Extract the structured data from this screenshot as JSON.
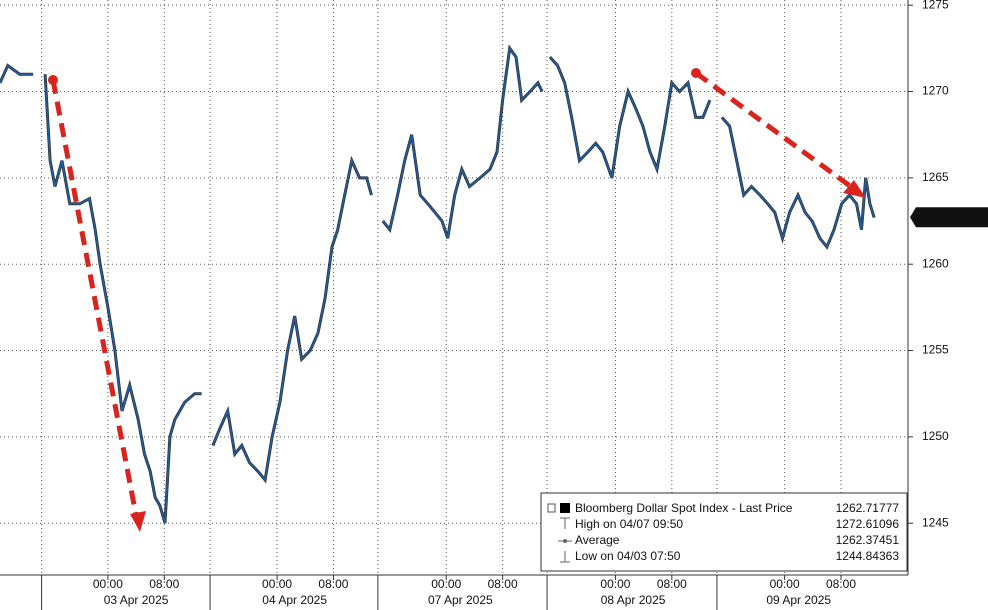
{
  "chart_data": {
    "type": "line",
    "x": [
      -15.3,
      -14.2,
      -12.5,
      -10.6,
      -9.4,
      -8.9,
      -8.2,
      -7.5,
      -6.5,
      -5.4,
      -4.0,
      -2.6,
      -1.8,
      -1.1,
      0,
      1.0,
      2.0,
      3.1,
      4.3,
      5.2,
      6.0,
      6.7,
      7.4,
      8.1,
      8.8,
      9.5,
      10.9,
      12.3,
      13.3,
      14.5,
      14.9,
      15.9,
      17.0,
      18.0,
      19.0,
      20.1,
      21.3,
      22.3,
      23.3,
      24.4,
      25.5,
      26.5,
      27.5,
      28.7,
      29.8,
      30.8,
      31.8,
      32.6,
      33.6,
      34.6,
      35.7,
      36.7,
      37.4,
      38.3,
      39.0,
      40.0,
      41.1,
      42.1,
      43.1,
      44.3,
      45.4,
      46.4,
      47.4,
      48.2,
      49.2,
      50.2,
      51.3,
      52.8,
      54.2,
      55.2,
      56.0,
      57.0,
      57.9,
      58.7,
      59.9,
      61.0,
      61.6,
      62.3,
      62.7,
      63.8,
      64.8,
      65.8,
      66.9,
      68.1,
      69.2,
      70.2,
      71.5,
      72.6,
      73.8,
      74.9,
      75.9,
      76.9,
      77.9,
      79.0,
      80.0,
      81.1,
      82.3,
      83.4,
      84.4,
      85.4,
      86.4,
      87.1,
      88.2,
      89.2,
      90.2,
      91.3,
      92.5,
      93.6,
      94.6,
      95.7,
      96.7,
      97.9,
      98.9,
      99.9,
      101.0,
      102.0,
      103.0,
      104.1,
      105.2,
      106.2,
      106.9,
      107.5,
      108.1,
      108.7
    ],
    "series": [
      {
        "name": "Bloomberg Dollar Spot Index - Last Price",
        "color": "#1d5fa6",
        "values": [
          1270.5,
          1271.5,
          1271,
          1271,
          null,
          1271,
          1266,
          1264.5,
          1266,
          1263.5,
          1263.5,
          1263.8,
          1262,
          1260,
          1257.5,
          1255,
          1251.5,
          1253,
          1251,
          1249,
          1248,
          1246.5,
          1246,
          1245,
          1250,
          1251,
          1252,
          1252.5,
          1252.5,
          null,
          1249.5,
          1250.5,
          1251.5,
          1249,
          1249.5,
          1248.5,
          1248,
          1247.5,
          1250,
          1252,
          1255,
          1257,
          1254.5,
          1255,
          1256,
          1258,
          1261,
          1262,
          1264,
          1266,
          1265,
          1265,
          1264,
          null,
          1262.5,
          1262,
          1264,
          1266,
          1267.5,
          1264,
          1263.5,
          1263,
          1262.5,
          1261.5,
          1264,
          1265.5,
          1264.5,
          1265,
          1265.5,
          1266.5,
          1269.5,
          1272.5,
          1272,
          1269.5,
          1270,
          1270.5,
          1270,
          null,
          1272,
          1271.5,
          1270.5,
          1268.5,
          1266,
          1266.5,
          1267,
          1266.5,
          1265,
          1268,
          1270,
          1269,
          1268,
          1266.5,
          1265.5,
          1268,
          1270.5,
          1270,
          1270.5,
          1268.5,
          1268.5,
          1269.5,
          null,
          1268.5,
          1268,
          1266,
          1264,
          1264.5,
          1264,
          1263.5,
          1263,
          1261.5,
          1263,
          1264,
          1263,
          1262.5,
          1261.5,
          1261,
          1262,
          1263.5,
          1264,
          1263.5,
          1262,
          1265,
          1263.5,
          1262.7
        ]
      }
    ],
    "last_price": 1262.71777,
    "legend_stats": [
      {
        "label": "High on 04/07 09:50",
        "value": 1272.61096
      },
      {
        "label": "Average",
        "value": 1262.37451
      },
      {
        "label": "Low on 04/03 07:50",
        "value": 1244.84363
      }
    ],
    "xlim": [
      -15.3,
      113.5
    ],
    "xticks": [
      {
        "value": 0,
        "label": "00:00"
      },
      {
        "value": 8,
        "label": "08:00"
      },
      {
        "value": 24,
        "label": "00:00"
      },
      {
        "value": 32,
        "label": "08:00"
      },
      {
        "value": 48,
        "label": "00:00"
      },
      {
        "value": 56,
        "label": "08:00"
      },
      {
        "value": 72,
        "label": "00:00"
      },
      {
        "value": 80,
        "label": "08:00"
      },
      {
        "value": 96,
        "label": "00:00"
      },
      {
        "value": 104,
        "label": "08:00"
      }
    ],
    "date_labels": [
      {
        "value": 4,
        "label": "03 Apr 2025"
      },
      {
        "value": 26.5,
        "label": "04 Apr 2025"
      },
      {
        "value": 50,
        "label": "07 Apr 2025"
      },
      {
        "value": 74.5,
        "label": "08 Apr 2025"
      },
      {
        "value": 98,
        "label": "09 Apr 2025"
      }
    ],
    "session_breaks": [
      -9.4,
      14.5,
      38.3,
      62.3,
      86.4
    ],
    "ylim": [
      1242,
      1275.3
    ],
    "yticks": [
      1245,
      1250,
      1255,
      1260,
      1265,
      1270,
      1275
    ],
    "grid": true
  }
}
